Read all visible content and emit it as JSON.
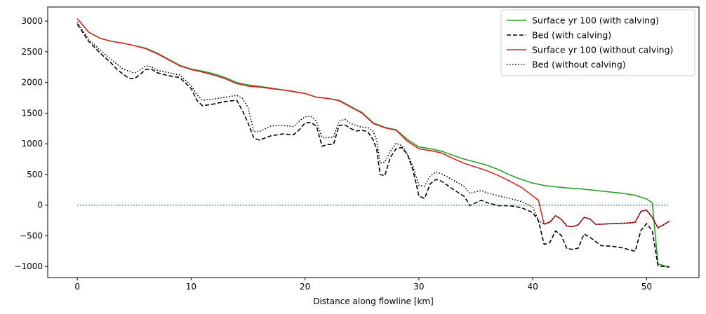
{
  "chart_data": {
    "type": "line",
    "title": "",
    "xlabel": "Distance along flowline [km]",
    "ylabel": "",
    "xlim": [
      -2.6,
      54.6
    ],
    "ylim": [
      -1180,
      3230
    ],
    "xticks": [
      0,
      10,
      20,
      30,
      40,
      50
    ],
    "yticks": [
      -1000,
      -500,
      0,
      500,
      1000,
      1500,
      2000,
      2500,
      3000
    ],
    "grid": false,
    "legend_position": "top-right",
    "series": [
      {
        "name": "Surface yr 100 (with calving)",
        "color": "#2ca02c",
        "style": "solid",
        "x": [
          0,
          1,
          2,
          3,
          4,
          5,
          6,
          7,
          8,
          9,
          10,
          11,
          12,
          13,
          14,
          15,
          16,
          17,
          18,
          19,
          20,
          21,
          22,
          23,
          24,
          25,
          26,
          27,
          28,
          29,
          30,
          31,
          32,
          33,
          34,
          35,
          36,
          37,
          38,
          39,
          40,
          41,
          42,
          43,
          44,
          45,
          46,
          47,
          48,
          49,
          50,
          50.5,
          51,
          52
        ],
        "y": [
          3040,
          2820,
          2720,
          2670,
          2640,
          2600,
          2560,
          2480,
          2380,
          2280,
          2220,
          2185,
          2140,
          2080,
          2000,
          1960,
          1935,
          1910,
          1880,
          1855,
          1820,
          1760,
          1740,
          1710,
          1610,
          1510,
          1340,
          1270,
          1230,
          1070,
          950,
          920,
          880,
          810,
          750,
          700,
          650,
          580,
          490,
          420,
          360,
          320,
          300,
          280,
          270,
          250,
          230,
          210,
          190,
          160,
          100,
          40,
          -960,
          -1010
        ]
      },
      {
        "name": "Bed (with calving)",
        "color": "#000000",
        "style": "dashed",
        "x": [
          0,
          1,
          2,
          3,
          3.5,
          4,
          4.5,
          5,
          5.5,
          6,
          6.5,
          7,
          8,
          9,
          10,
          10.5,
          11,
          12,
          13,
          14,
          14.5,
          15,
          15.5,
          16,
          17,
          18,
          19,
          19.5,
          20,
          20.5,
          21,
          21.5,
          22,
          22.5,
          23,
          23.5,
          24,
          24.5,
          25,
          25.5,
          26,
          26.3,
          26.6,
          27,
          27.5,
          28,
          28.5,
          29,
          29.5,
          30,
          30.5,
          31,
          31.5,
          32,
          33,
          34,
          34.5,
          35,
          35.5,
          36,
          37,
          38,
          39,
          40,
          40.5,
          41,
          41.5,
          42,
          42.5,
          43,
          43.5,
          44,
          44.5,
          45,
          46,
          47,
          48,
          48.5,
          49,
          49.5,
          50,
          50.5,
          51,
          52
        ],
        "y": [
          2950,
          2670,
          2480,
          2310,
          2210,
          2140,
          2070,
          2060,
          2130,
          2210,
          2220,
          2160,
          2110,
          2080,
          1900,
          1710,
          1620,
          1650,
          1690,
          1710,
          1540,
          1340,
          1090,
          1060,
          1130,
          1160,
          1150,
          1230,
          1340,
          1350,
          1290,
          960,
          990,
          990,
          1300,
          1310,
          1250,
          1210,
          1220,
          1200,
          1060,
          900,
          500,
          480,
          780,
          920,
          940,
          820,
          560,
          150,
          110,
          350,
          420,
          390,
          260,
          140,
          -10,
          40,
          80,
          40,
          -10,
          -10,
          -40,
          -120,
          -250,
          -640,
          -610,
          -420,
          -490,
          -710,
          -720,
          -700,
          -470,
          -520,
          -660,
          -670,
          -700,
          -730,
          -750,
          -410,
          -300,
          -420,
          -990,
          -1010
        ]
      },
      {
        "name": "Surface yr 100 (without calving)",
        "color": "#d62728",
        "style": "solid",
        "x": [
          0,
          1,
          2,
          3,
          4,
          5,
          6,
          7,
          8,
          9,
          10,
          11,
          12,
          13,
          14,
          15,
          16,
          17,
          18,
          19,
          20,
          21,
          22,
          23,
          24,
          25,
          26,
          27,
          28,
          29,
          30,
          31,
          32,
          33,
          34,
          35,
          36,
          37,
          38,
          39,
          40,
          40.5,
          41,
          41.5,
          42,
          42.5,
          43,
          43.5,
          44,
          44.5,
          45,
          45.5,
          46,
          47,
          48,
          48.5,
          49,
          49.5,
          50,
          50.5,
          51,
          51.5,
          52
        ],
        "y": [
          3040,
          2820,
          2720,
          2670,
          2640,
          2600,
          2550,
          2470,
          2370,
          2270,
          2210,
          2170,
          2120,
          2060,
          1980,
          1940,
          1925,
          1900,
          1880,
          1850,
          1820,
          1760,
          1740,
          1700,
          1600,
          1500,
          1330,
          1260,
          1220,
          1040,
          920,
          890,
          850,
          760,
          680,
          620,
          560,
          480,
          390,
          290,
          150,
          80,
          -310,
          -280,
          -170,
          -230,
          -340,
          -350,
          -320,
          -200,
          -220,
          -310,
          -310,
          -300,
          -295,
          -290,
          -280,
          -100,
          -80,
          -200,
          -370,
          -320,
          -260
        ]
      },
      {
        "name": "Bed (without calving)",
        "color": "#000000",
        "style": "dotted",
        "x": [
          0,
          1,
          2,
          3,
          4,
          5,
          5.5,
          6,
          6.5,
          7,
          8,
          9,
          10,
          10.5,
          11,
          12,
          13,
          14,
          14.5,
          15,
          15.5,
          16,
          17,
          18,
          19,
          19.5,
          20,
          20.5,
          21,
          21.5,
          22,
          22.5,
          23,
          23.5,
          24,
          25,
          25.5,
          26,
          26.3,
          26.6,
          27,
          27.5,
          28,
          28.5,
          29,
          29.5,
          30,
          30.5,
          31,
          31.5,
          32,
          33,
          34,
          34.5,
          35,
          35.5,
          36,
          37,
          38,
          39,
          40,
          40.5,
          41,
          41.5,
          42,
          42.5,
          43,
          43.5,
          44,
          44.5,
          45,
          45.5,
          46,
          47,
          48,
          48.5,
          49,
          49.5,
          50,
          50.5,
          51,
          51.5,
          52
        ],
        "y": [
          2980,
          2700,
          2530,
          2370,
          2220,
          2150,
          2200,
          2270,
          2260,
          2200,
          2160,
          2120,
          1950,
          1800,
          1710,
          1730,
          1760,
          1790,
          1740,
          1590,
          1200,
          1200,
          1290,
          1300,
          1280,
          1370,
          1440,
          1450,
          1370,
          1100,
          1100,
          1110,
          1370,
          1400,
          1330,
          1270,
          1270,
          1200,
          1050,
          690,
          700,
          880,
          1010,
          970,
          830,
          620,
          320,
          310,
          480,
          540,
          510,
          410,
          300,
          190,
          220,
          240,
          200,
          150,
          110,
          60,
          -30,
          -250,
          -310,
          -270,
          -170,
          -230,
          -340,
          -350,
          -320,
          -200,
          -220,
          -310,
          -310,
          -300,
          -295,
          -290,
          -280,
          -100,
          -80,
          -200,
          -370,
          -320,
          -260
        ]
      },
      {
        "name": "",
        "color": "#1f77b4",
        "style": "dotted",
        "x": [
          0,
          52
        ],
        "y": [
          0,
          0
        ]
      }
    ]
  }
}
